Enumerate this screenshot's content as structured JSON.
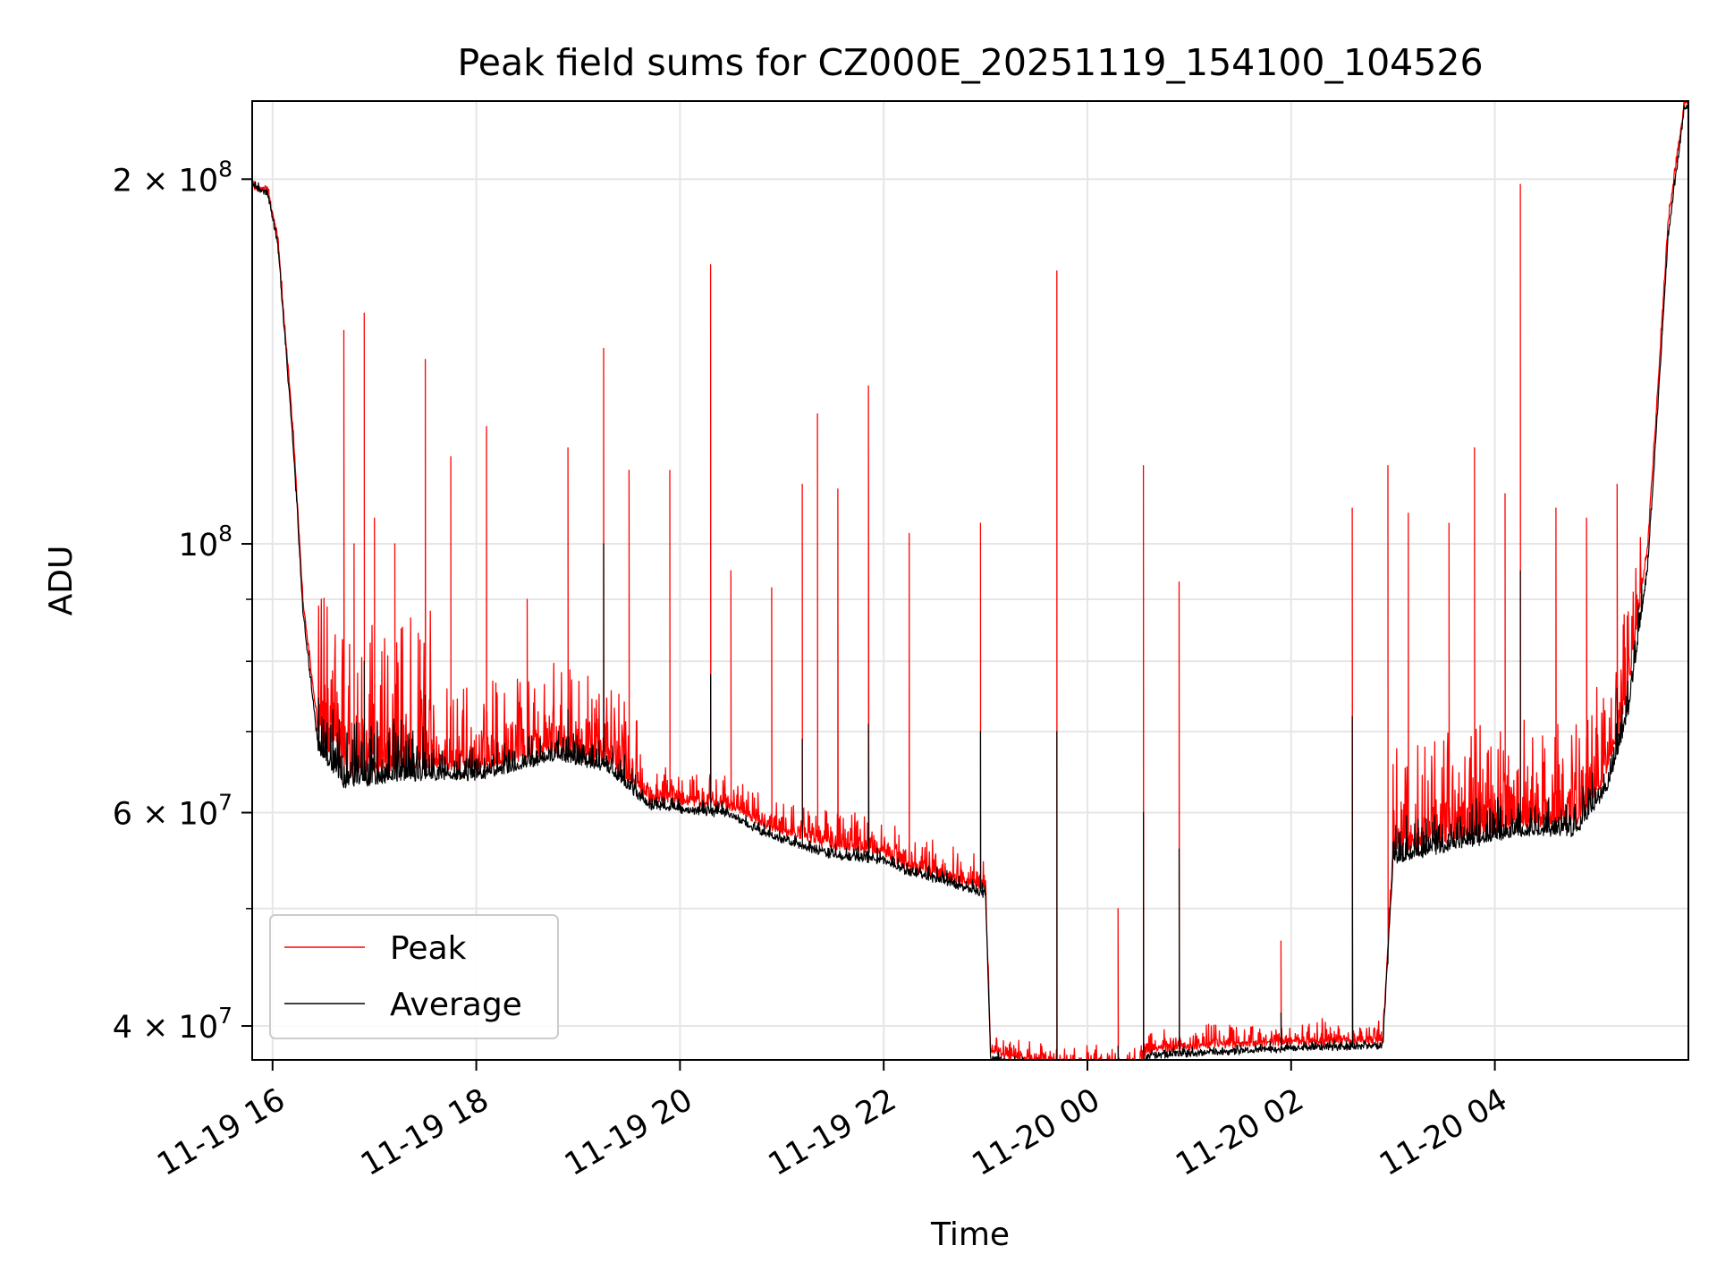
{
  "chart_data": {
    "type": "line",
    "title": "Peak field sums for CZ000E_20251119_154100_104526",
    "xlabel": "Time",
    "ylabel": "ADU",
    "yscale": "log",
    "xlim_hours": [
      -0.2,
      13.9
    ],
    "ylim": [
      37500000,
      232000000
    ],
    "grid": true,
    "legend_position": "lower-left",
    "x_ticks": [
      {
        "hour": 0,
        "label": "11-19 16"
      },
      {
        "hour": 2,
        "label": "11-19 18"
      },
      {
        "hour": 4,
        "label": "11-19 20"
      },
      {
        "hour": 6,
        "label": "11-19 22"
      },
      {
        "hour": 8,
        "label": "11-20 00"
      },
      {
        "hour": 10,
        "label": "11-20 02"
      },
      {
        "hour": 12,
        "label": "11-20 04"
      }
    ],
    "y_major_ticks": [
      {
        "value": 40000000,
        "mantissa": "4",
        "exponent": "7"
      },
      {
        "value": 60000000,
        "mantissa": "6",
        "exponent": "7"
      },
      {
        "value": 100000000,
        "mantissa": "",
        "exponent": "8"
      },
      {
        "value": 200000000,
        "mantissa": "2",
        "exponent": "8"
      }
    ],
    "y_minor_ticks": [
      50000000,
      70000000,
      80000000,
      90000000
    ],
    "x_hour_note": "hours relative to 11-19 16:00",
    "series": [
      {
        "name": "Peak",
        "color": "#ff0000",
        "baseline": [
          [
            -0.32,
            200000000
          ],
          [
            -0.05,
            197000000
          ],
          [
            0.05,
            180000000
          ],
          [
            0.2,
            125000000
          ],
          [
            0.3,
            90000000
          ],
          [
            0.45,
            70000000
          ],
          [
            0.7,
            65000000
          ],
          [
            1.5,
            66000000
          ],
          [
            2.0,
            65500000
          ],
          [
            2.8,
            68000000
          ],
          [
            3.3,
            66500000
          ],
          [
            3.7,
            62000000
          ],
          [
            4.5,
            61000000
          ],
          [
            4.8,
            59000000
          ],
          [
            5.5,
            56500000
          ],
          [
            6.0,
            56000000
          ],
          [
            6.2,
            54500000
          ],
          [
            6.9,
            52500000
          ],
          [
            7.0,
            52000000
          ],
          [
            7.05,
            38200000
          ],
          [
            7.6,
            37500000
          ],
          [
            8.2,
            37000000
          ],
          [
            8.5,
            37000000
          ],
          [
            8.6,
            38400000
          ],
          [
            9.4,
            38800000
          ],
          [
            10.0,
            39000000
          ],
          [
            10.3,
            39000000
          ],
          [
            10.9,
            39000000
          ],
          [
            11.0,
            56000000
          ],
          [
            11.6,
            57500000
          ],
          [
            12.3,
            59000000
          ],
          [
            12.8,
            59000000
          ],
          [
            13.1,
            65000000
          ],
          [
            13.3,
            75000000
          ],
          [
            13.5,
            100000000
          ],
          [
            13.6,
            135000000
          ],
          [
            13.7,
            185000000
          ],
          [
            13.86,
            232000000
          ]
        ],
        "spikes": [
          [
            0.7,
            150000000
          ],
          [
            0.8,
            100000000
          ],
          [
            0.9,
            155000000
          ],
          [
            1.0,
            105000000
          ],
          [
            1.2,
            100000000
          ],
          [
            1.5,
            142000000
          ],
          [
            1.75,
            118000000
          ],
          [
            2.1,
            125000000
          ],
          [
            2.5,
            90000000
          ],
          [
            2.9,
            120000000
          ],
          [
            3.25,
            145000000
          ],
          [
            3.5,
            115000000
          ],
          [
            3.9,
            115000000
          ],
          [
            4.3,
            170000000
          ],
          [
            4.5,
            95000000
          ],
          [
            4.9,
            92000000
          ],
          [
            5.2,
            112000000
          ],
          [
            5.35,
            128000000
          ],
          [
            5.55,
            111000000
          ],
          [
            5.85,
            135000000
          ],
          [
            6.25,
            102000000
          ],
          [
            6.95,
            104000000
          ],
          [
            7.7,
            168000000
          ],
          [
            8.3,
            50000000
          ],
          [
            8.55,
            116000000
          ],
          [
            8.9,
            93000000
          ],
          [
            9.9,
            47000000
          ],
          [
            10.6,
            107000000
          ],
          [
            10.95,
            116000000
          ],
          [
            11.15,
            106000000
          ],
          [
            11.55,
            104000000
          ],
          [
            11.8,
            120000000
          ],
          [
            12.1,
            110000000
          ],
          [
            12.25,
            198000000
          ],
          [
            12.6,
            107000000
          ],
          [
            12.9,
            105000000
          ],
          [
            13.2,
            112000000
          ]
        ]
      },
      {
        "name": "Average",
        "color": "#000000",
        "baseline": [
          [
            -0.32,
            200000000
          ],
          [
            -0.05,
            196000000
          ],
          [
            0.05,
            178000000
          ],
          [
            0.2,
            122000000
          ],
          [
            0.3,
            88000000
          ],
          [
            0.45,
            68000000
          ],
          [
            0.7,
            63500000
          ],
          [
            1.5,
            64500000
          ],
          [
            2.0,
            64500000
          ],
          [
            2.8,
            67000000
          ],
          [
            3.3,
            65500000
          ],
          [
            3.7,
            61000000
          ],
          [
            4.5,
            60000000
          ],
          [
            4.8,
            58000000
          ],
          [
            5.5,
            55500000
          ],
          [
            6.0,
            55000000
          ],
          [
            6.2,
            54000000
          ],
          [
            6.9,
            52000000
          ],
          [
            7.0,
            51500000
          ],
          [
            7.05,
            37800000
          ],
          [
            7.6,
            37200000
          ],
          [
            8.2,
            36800000
          ],
          [
            8.5,
            36800000
          ],
          [
            8.6,
            38000000
          ],
          [
            9.4,
            38300000
          ],
          [
            10.0,
            38500000
          ],
          [
            10.3,
            38600000
          ],
          [
            10.9,
            38700000
          ],
          [
            11.0,
            55000000
          ],
          [
            11.6,
            56500000
          ],
          [
            12.3,
            58000000
          ],
          [
            12.8,
            58000000
          ],
          [
            13.1,
            63000000
          ],
          [
            13.3,
            72000000
          ],
          [
            13.5,
            96000000
          ],
          [
            13.6,
            130000000
          ],
          [
            13.7,
            180000000
          ],
          [
            13.86,
            230000000
          ]
        ],
        "spikes": [
          [
            0.9,
            80000000
          ],
          [
            1.5,
            75000000
          ],
          [
            2.9,
            73000000
          ],
          [
            3.25,
            100000000
          ],
          [
            4.3,
            78000000
          ],
          [
            5.2,
            69000000
          ],
          [
            5.85,
            71000000
          ],
          [
            6.95,
            70000000
          ],
          [
            7.7,
            70000000
          ],
          [
            8.3,
            38500000
          ],
          [
            8.55,
            60000000
          ],
          [
            8.9,
            56000000
          ],
          [
            9.9,
            41000000
          ],
          [
            10.6,
            72000000
          ],
          [
            10.95,
            45000000
          ],
          [
            12.25,
            95000000
          ],
          [
            13.2,
            76000000
          ]
        ]
      }
    ]
  }
}
